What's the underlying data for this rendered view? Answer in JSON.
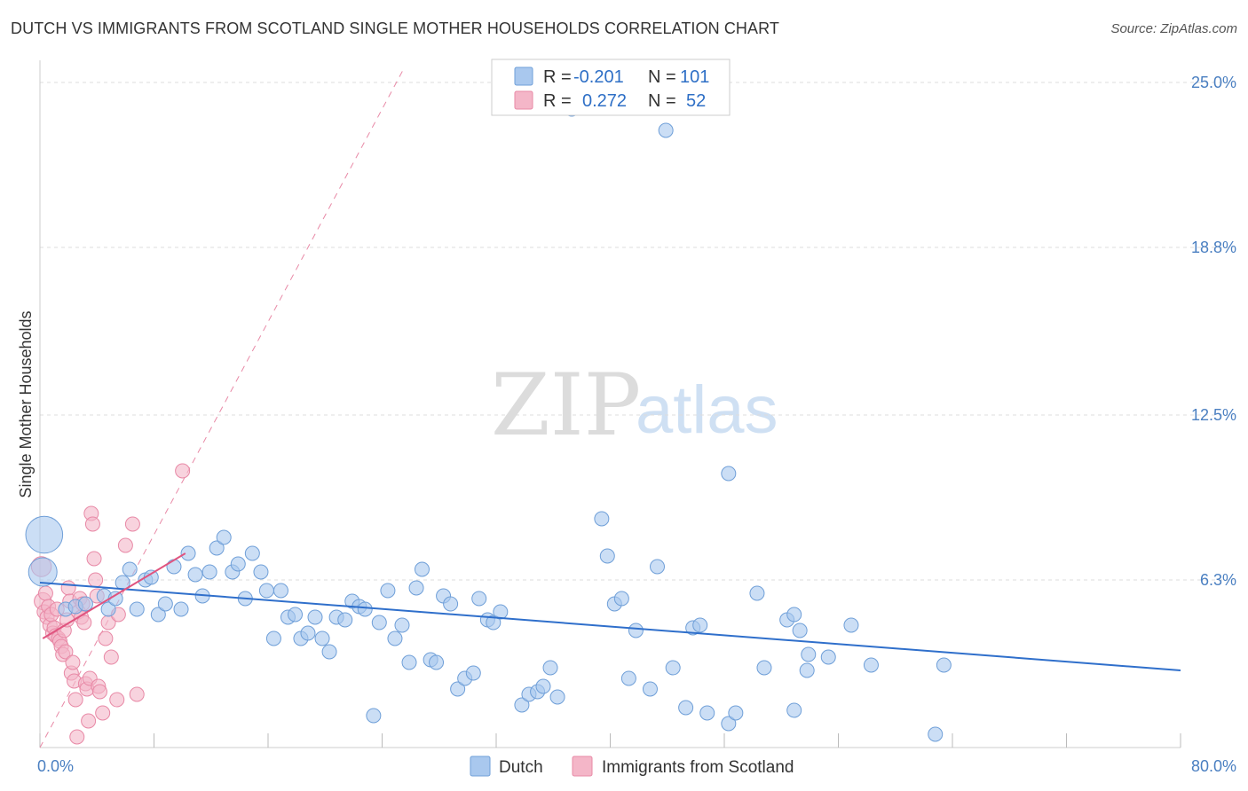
{
  "title": "DUTCH VS IMMIGRANTS FROM SCOTLAND SINGLE MOTHER HOUSEHOLDS CORRELATION CHART",
  "source": "Source: ZipAtlas.com",
  "watermark": {
    "zip": "ZIP",
    "atlas": "atlas"
  },
  "colors": {
    "dutch_fill": "#a9c8ee",
    "dutch_stroke": "#6f9fd8",
    "dutch_line": "#2f6fcb",
    "scot_fill": "#f4b6c8",
    "scot_stroke": "#e889a6",
    "scot_line": "#e0547f",
    "grid": "#dddddd"
  },
  "legend": {
    "dutch": {
      "r_label": "R =",
      "r_value": "-0.201",
      "n_label": "N =",
      "n_value": "101"
    },
    "scot": {
      "r_label": "R =",
      "r_value": "0.272",
      "n_label": "N =",
      "n_value": "52"
    }
  },
  "chart_data": {
    "type": "scatter",
    "title": "DUTCH VS IMMIGRANTS FROM SCOTLAND SINGLE MOTHER HOUSEHOLDS CORRELATION CHART",
    "xlabel": "",
    "ylabel": "Single Mother Households",
    "xlim": [
      0,
      80
    ],
    "ylim": [
      0,
      25.5
    ],
    "x_tick_labels": [
      "0.0%",
      "80.0%"
    ],
    "y_ticks": [
      6.3,
      12.5,
      18.8,
      25.0
    ],
    "y_tick_labels": [
      "6.3%",
      "12.5%",
      "18.8%",
      "25.0%"
    ],
    "grid": true,
    "legend_position": "top-center",
    "series": [
      {
        "name": "Dutch",
        "r": -0.201,
        "n": 101,
        "trend": [
          [
            0,
            6.2
          ],
          [
            80,
            2.9
          ]
        ],
        "points": [
          [
            0.3,
            8.0,
            2.6
          ],
          [
            0.2,
            6.6,
            2.0
          ],
          [
            1.8,
            5.2,
            1
          ],
          [
            2.5,
            5.3,
            1
          ],
          [
            3.2,
            5.4,
            1
          ],
          [
            4.5,
            5.7,
            1
          ],
          [
            4.8,
            5.2,
            1
          ],
          [
            5.3,
            5.6,
            1
          ],
          [
            5.8,
            6.2,
            1
          ],
          [
            6.3,
            6.7,
            1
          ],
          [
            6.8,
            5.2,
            1
          ],
          [
            7.4,
            6.3,
            1
          ],
          [
            7.8,
            6.4,
            1
          ],
          [
            8.3,
            5.0,
            1
          ],
          [
            8.8,
            5.4,
            1
          ],
          [
            9.4,
            6.8,
            1
          ],
          [
            9.9,
            5.2,
            1
          ],
          [
            10.4,
            7.3,
            1
          ],
          [
            10.9,
            6.5,
            1
          ],
          [
            11.4,
            5.7,
            1
          ],
          [
            11.9,
            6.6,
            1
          ],
          [
            12.4,
            7.5,
            1
          ],
          [
            12.9,
            7.9,
            1
          ],
          [
            13.5,
            6.6,
            1
          ],
          [
            13.9,
            6.9,
            1
          ],
          [
            14.4,
            5.6,
            1
          ],
          [
            14.9,
            7.3,
            1
          ],
          [
            15.5,
            6.6,
            1
          ],
          [
            15.9,
            5.9,
            1
          ],
          [
            16.4,
            4.1,
            1
          ],
          [
            16.9,
            5.9,
            1
          ],
          [
            17.4,
            4.9,
            1
          ],
          [
            17.9,
            5.0,
            1
          ],
          [
            18.3,
            4.1,
            1
          ],
          [
            18.8,
            4.3,
            1
          ],
          [
            19.3,
            4.9,
            1
          ],
          [
            19.8,
            4.1,
            1
          ],
          [
            20.3,
            3.6,
            1
          ],
          [
            20.8,
            4.9,
            1
          ],
          [
            21.4,
            4.8,
            1
          ],
          [
            21.9,
            5.5,
            1
          ],
          [
            22.4,
            5.3,
            1
          ],
          [
            22.8,
            5.2,
            1
          ],
          [
            23.4,
            1.2,
            1
          ],
          [
            23.8,
            4.7,
            1
          ],
          [
            24.4,
            5.9,
            1
          ],
          [
            24.9,
            4.1,
            1
          ],
          [
            25.4,
            4.6,
            1
          ],
          [
            25.9,
            3.2,
            1
          ],
          [
            26.4,
            6.0,
            1
          ],
          [
            26.8,
            6.7,
            1
          ],
          [
            27.4,
            3.3,
            1
          ],
          [
            27.8,
            3.2,
            1
          ],
          [
            28.3,
            5.7,
            1
          ],
          [
            28.8,
            5.4,
            1
          ],
          [
            29.3,
            2.2,
            1
          ],
          [
            29.8,
            2.6,
            1
          ],
          [
            30.4,
            2.8,
            1
          ],
          [
            30.8,
            5.6,
            1
          ],
          [
            31.4,
            4.8,
            1
          ],
          [
            31.8,
            4.7,
            1
          ],
          [
            32.3,
            5.1,
            1
          ],
          [
            33.8,
            1.6,
            1
          ],
          [
            34.3,
            2.0,
            1
          ],
          [
            34.9,
            2.1,
            1
          ],
          [
            35.3,
            2.3,
            1
          ],
          [
            35.8,
            3.0,
            1
          ],
          [
            36.3,
            1.9,
            1
          ],
          [
            37.3,
            24.0,
            1
          ],
          [
            39.4,
            8.6,
            1
          ],
          [
            39.8,
            7.2,
            1
          ],
          [
            40.3,
            5.4,
            1
          ],
          [
            40.8,
            5.6,
            1
          ],
          [
            41.3,
            2.6,
            1
          ],
          [
            41.8,
            4.4,
            1
          ],
          [
            42.8,
            2.2,
            1
          ],
          [
            43.3,
            6.8,
            1
          ],
          [
            43.9,
            23.2,
            1
          ],
          [
            44.4,
            3.0,
            1
          ],
          [
            45.3,
            1.5,
            1
          ],
          [
            45.8,
            4.5,
            1
          ],
          [
            46.3,
            4.6,
            1
          ],
          [
            46.8,
            1.3,
            1
          ],
          [
            48.3,
            0.9,
            1
          ],
          [
            48.8,
            1.3,
            1
          ],
          [
            48.3,
            10.3,
            1
          ],
          [
            50.3,
            5.8,
            1
          ],
          [
            50.8,
            3.0,
            1
          ],
          [
            52.9,
            1.4,
            1
          ],
          [
            52.4,
            4.8,
            1
          ],
          [
            53.9,
            3.5,
            1
          ],
          [
            53.3,
            4.4,
            1
          ],
          [
            52.9,
            5.0,
            1
          ],
          [
            53.8,
            2.9,
            1
          ],
          [
            55.3,
            3.4,
            1
          ],
          [
            56.9,
            4.6,
            1
          ],
          [
            58.3,
            3.1,
            1
          ],
          [
            63.4,
            3.1,
            1
          ],
          [
            62.8,
            0.5,
            1
          ]
        ]
      },
      {
        "name": "Immigrants from Scotland",
        "r": 0.272,
        "n": 52,
        "trend": [
          [
            0.2,
            4.1
          ],
          [
            10.2,
            7.3
          ]
        ],
        "points": [
          [
            0.1,
            6.8,
            1.4
          ],
          [
            0.2,
            5.5,
            1.2
          ],
          [
            0.3,
            5.1,
            1
          ],
          [
            0.4,
            5.8,
            1
          ],
          [
            0.5,
            4.9,
            1
          ],
          [
            0.6,
            5.3,
            1
          ],
          [
            0.7,
            4.6,
            1
          ],
          [
            0.8,
            5.0,
            1
          ],
          [
            0.9,
            4.3,
            1
          ],
          [
            1.0,
            4.5,
            1
          ],
          [
            1.1,
            4.2,
            1
          ],
          [
            1.2,
            5.2,
            1
          ],
          [
            1.3,
            4.1,
            1
          ],
          [
            1.4,
            4.0,
            1
          ],
          [
            1.5,
            3.8,
            1
          ],
          [
            1.6,
            3.5,
            1
          ],
          [
            1.7,
            4.4,
            1
          ],
          [
            1.8,
            3.6,
            1
          ],
          [
            1.9,
            4.8,
            1
          ],
          [
            2.0,
            6.0,
            1
          ],
          [
            2.1,
            5.5,
            1
          ],
          [
            2.2,
            2.8,
            1
          ],
          [
            2.3,
            3.2,
            1
          ],
          [
            2.4,
            2.5,
            1
          ],
          [
            2.5,
            1.8,
            1
          ],
          [
            2.6,
            0.4,
            1
          ],
          [
            2.7,
            5.1,
            1
          ],
          [
            2.8,
            5.6,
            1
          ],
          [
            2.9,
            4.9,
            1
          ],
          [
            3.0,
            5.4,
            1
          ],
          [
            3.1,
            4.7,
            1
          ],
          [
            3.2,
            2.4,
            1
          ],
          [
            3.3,
            2.2,
            1
          ],
          [
            3.4,
            1.0,
            1
          ],
          [
            3.5,
            2.6,
            1
          ],
          [
            3.6,
            8.8,
            1
          ],
          [
            3.7,
            8.4,
            1
          ],
          [
            3.8,
            7.1,
            1
          ],
          [
            3.9,
            6.3,
            1
          ],
          [
            4.0,
            5.7,
            1
          ],
          [
            4.1,
            2.3,
            1
          ],
          [
            4.2,
            2.1,
            1
          ],
          [
            4.4,
            1.3,
            1
          ],
          [
            4.6,
            4.1,
            1
          ],
          [
            4.8,
            4.7,
            1
          ],
          [
            5.0,
            3.4,
            1
          ],
          [
            5.4,
            1.8,
            1
          ],
          [
            6.0,
            7.6,
            1
          ],
          [
            6.5,
            8.4,
            1
          ],
          [
            6.8,
            2.0,
            1
          ],
          [
            5.5,
            5.0,
            1
          ],
          [
            10.0,
            10.4,
            1
          ]
        ]
      }
    ]
  },
  "bottom_legend": {
    "dutch": "Dutch",
    "scot": "Immigrants from Scotland"
  }
}
